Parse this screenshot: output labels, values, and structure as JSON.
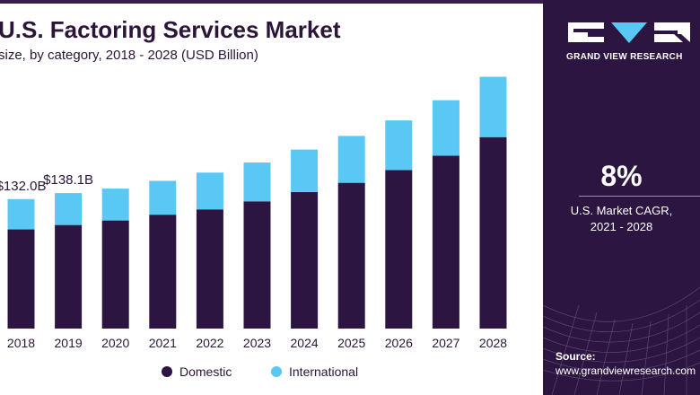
{
  "chart_data": {
    "type": "bar",
    "stacked": true,
    "title": "U.S. Factoring Services Market",
    "subtitle": "size, by category, 2018 - 2028 (USD Billion)",
    "categories": [
      "2018",
      "2019",
      "2020",
      "2021",
      "2022",
      "2023",
      "2024",
      "2025",
      "2026",
      "2027",
      "2028"
    ],
    "series": [
      {
        "name": "Domestic",
        "color": "#2c1540",
        "values": [
          101.1,
          105.6,
          110.2,
          116.1,
          121.5,
          129.7,
          139.2,
          148.6,
          161.6,
          176.3,
          195.2
        ]
      },
      {
        "name": "International",
        "color": "#5ac8f5",
        "values": [
          30.9,
          32.5,
          32.5,
          34.5,
          37.5,
          39.6,
          43.3,
          47.8,
          50.6,
          56.5,
          61.5
        ]
      }
    ],
    "annotations": [
      {
        "category": "2018",
        "label": "$132.0B"
      },
      {
        "category": "2019",
        "label": "$138.1B"
      }
    ],
    "ylim": [
      0,
      270
    ],
    "legend_position": "bottom"
  },
  "panel": {
    "brand": "GRAND VIEW RESEARCH",
    "cagr_value": "8%",
    "cagr_label_line1": "U.S. Market CAGR,",
    "cagr_label_line2": "2021 - 2028",
    "source_label": "Source:",
    "source_url": "www.grandviewresearch.com"
  }
}
